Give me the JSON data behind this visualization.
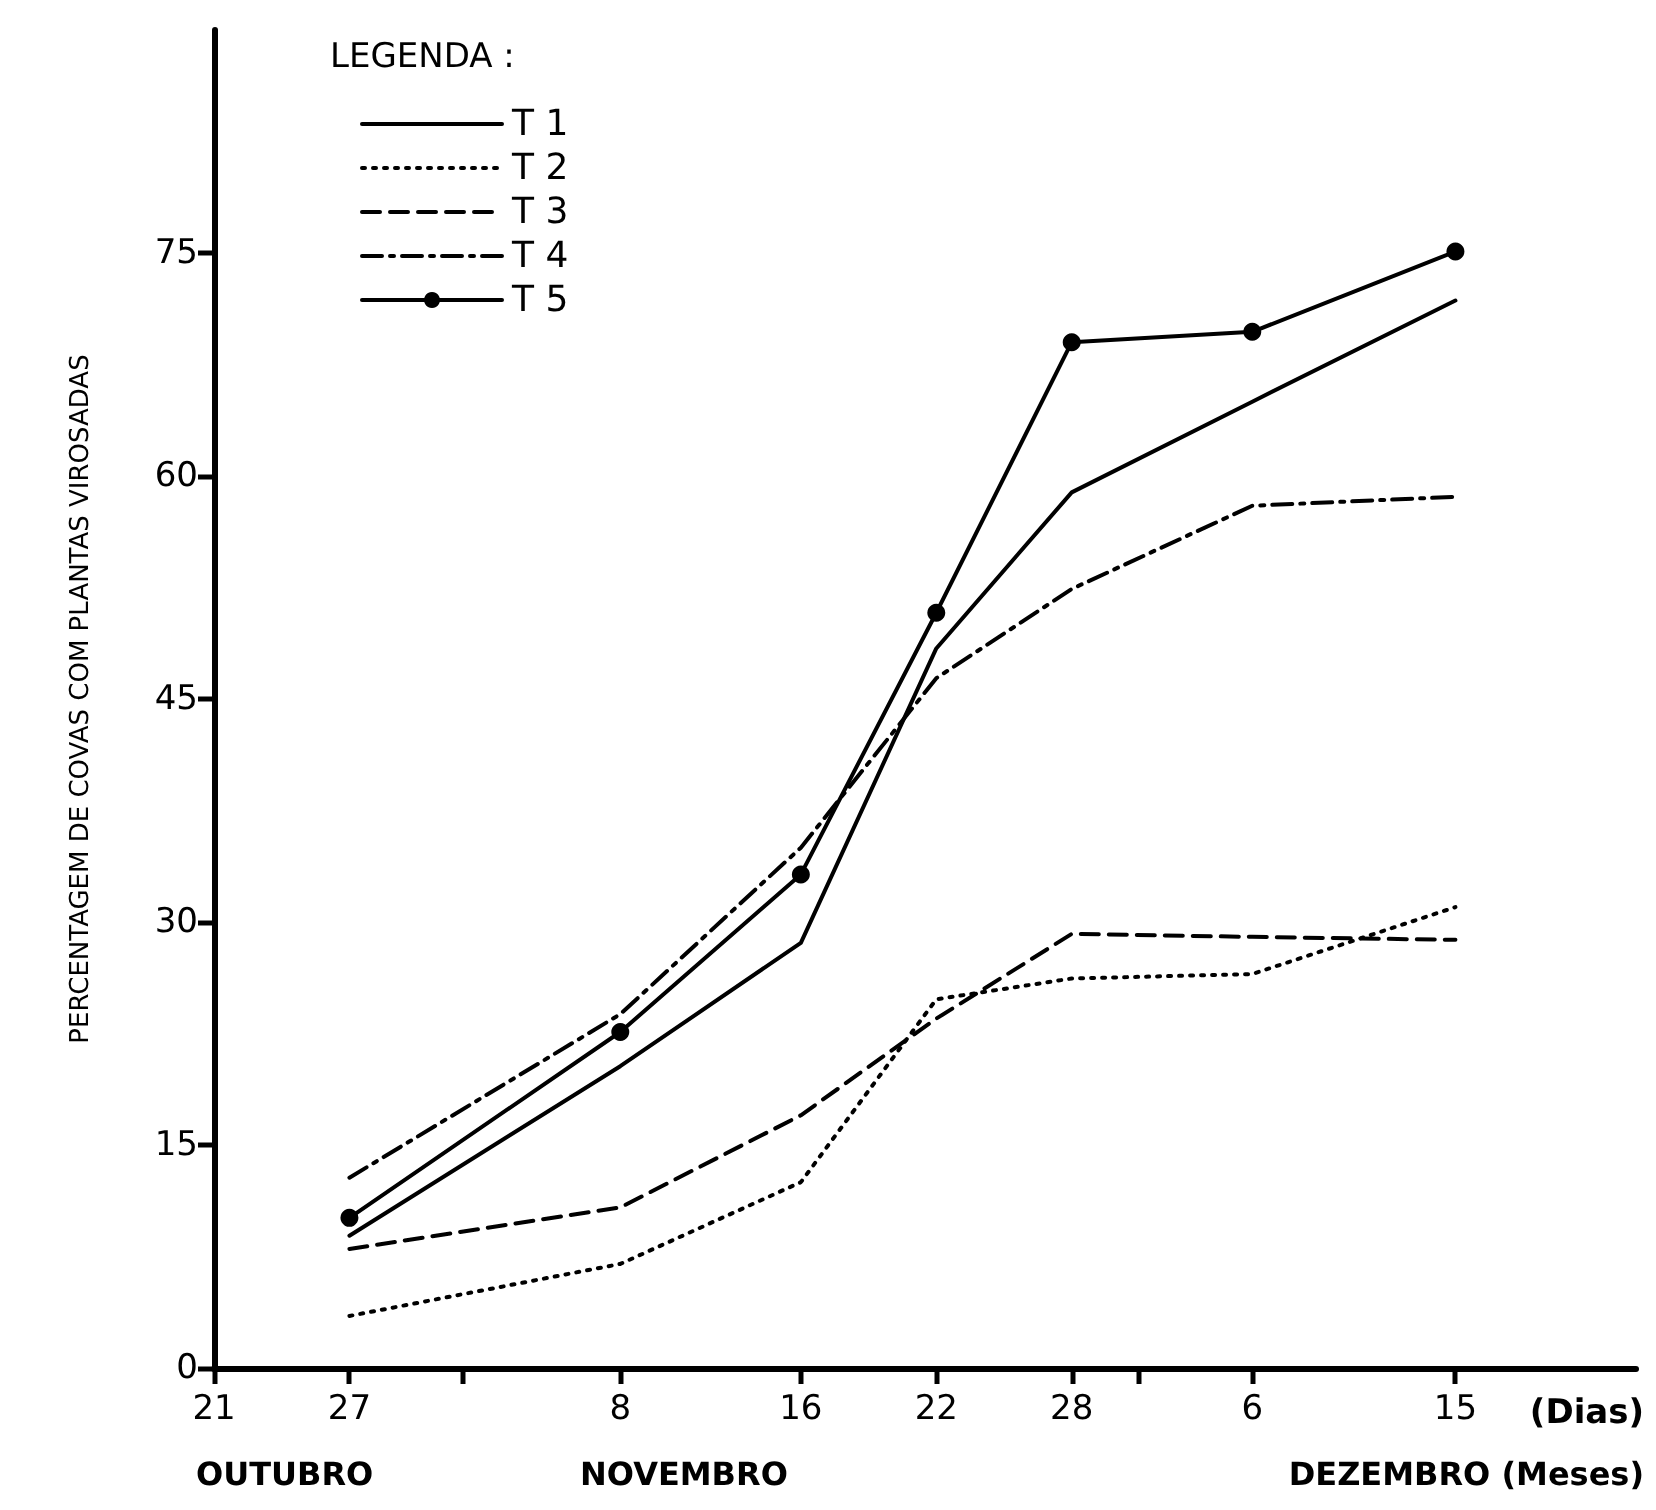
{
  "chart_data": {
    "type": "line",
    "ylabel": "PERCENTAGEM DE COVAS COM PLANTAS VIROSADAS",
    "xlabel": "(Dias)",
    "legend_title": "LEGENDA :",
    "annotations": [
      "OUTUBRO",
      "NOVEMBRO",
      "DEZEMBRO (Meses)"
    ],
    "x": [
      "--10-27",
      "--11-08",
      "--11-16",
      "--11-22",
      "--11-28",
      "--12-06",
      "--12-15"
    ],
    "series": [
      {
        "name": "T 1",
        "color": "#000000",
        "line_style": "solid",
        "marker": "none",
        "values": [
          8.9,
          20.3,
          28.6,
          48.4,
          58.9,
          65,
          71.8
        ]
      },
      {
        "name": "T 2",
        "color": "#000000",
        "line_style": "dotted",
        "marker": "none",
        "values": [
          3.5,
          7,
          12.5,
          24.8,
          26.2,
          26.5,
          31
        ]
      },
      {
        "name": "T 3",
        "color": "#000000",
        "line_style": "dashed",
        "marker": "none",
        "values": [
          8,
          10.8,
          17,
          23.5,
          29.2,
          29,
          28.8
        ]
      },
      {
        "name": "T 4",
        "color": "#000000",
        "line_style": "dashdot",
        "marker": "none",
        "values": [
          12.8,
          23.8,
          35,
          46.4,
          52.4,
          58,
          58.6
        ]
      },
      {
        "name": "T 5",
        "color": "#000000",
        "line_style": "solid",
        "marker": "circle",
        "values": [
          10.1,
          22.6,
          33.2,
          50.8,
          69,
          69.7,
          75.1
        ]
      }
    ],
    "xlim": [
      "--10-21",
      "--12-23"
    ],
    "xticks": [
      {
        "value": "--10-21",
        "label": "21"
      },
      {
        "value": "--10-27",
        "label": "27"
      },
      {
        "value": "--11-01",
        "label": null
      },
      {
        "value": "--11-08",
        "label": "8"
      },
      {
        "value": "--11-16",
        "label": "16"
      },
      {
        "value": "--11-22",
        "label": "22"
      },
      {
        "value": "--11-28",
        "label": "28"
      },
      {
        "value": "--12-01",
        "label": null
      },
      {
        "value": "--12-06",
        "label": "6"
      },
      {
        "value": "--12-15",
        "label": "15"
      }
    ],
    "ylim": [
      0,
      90
    ],
    "yticks": [
      0,
      15,
      30,
      45,
      60,
      75
    ],
    "grid": false,
    "legend": "top left"
  }
}
